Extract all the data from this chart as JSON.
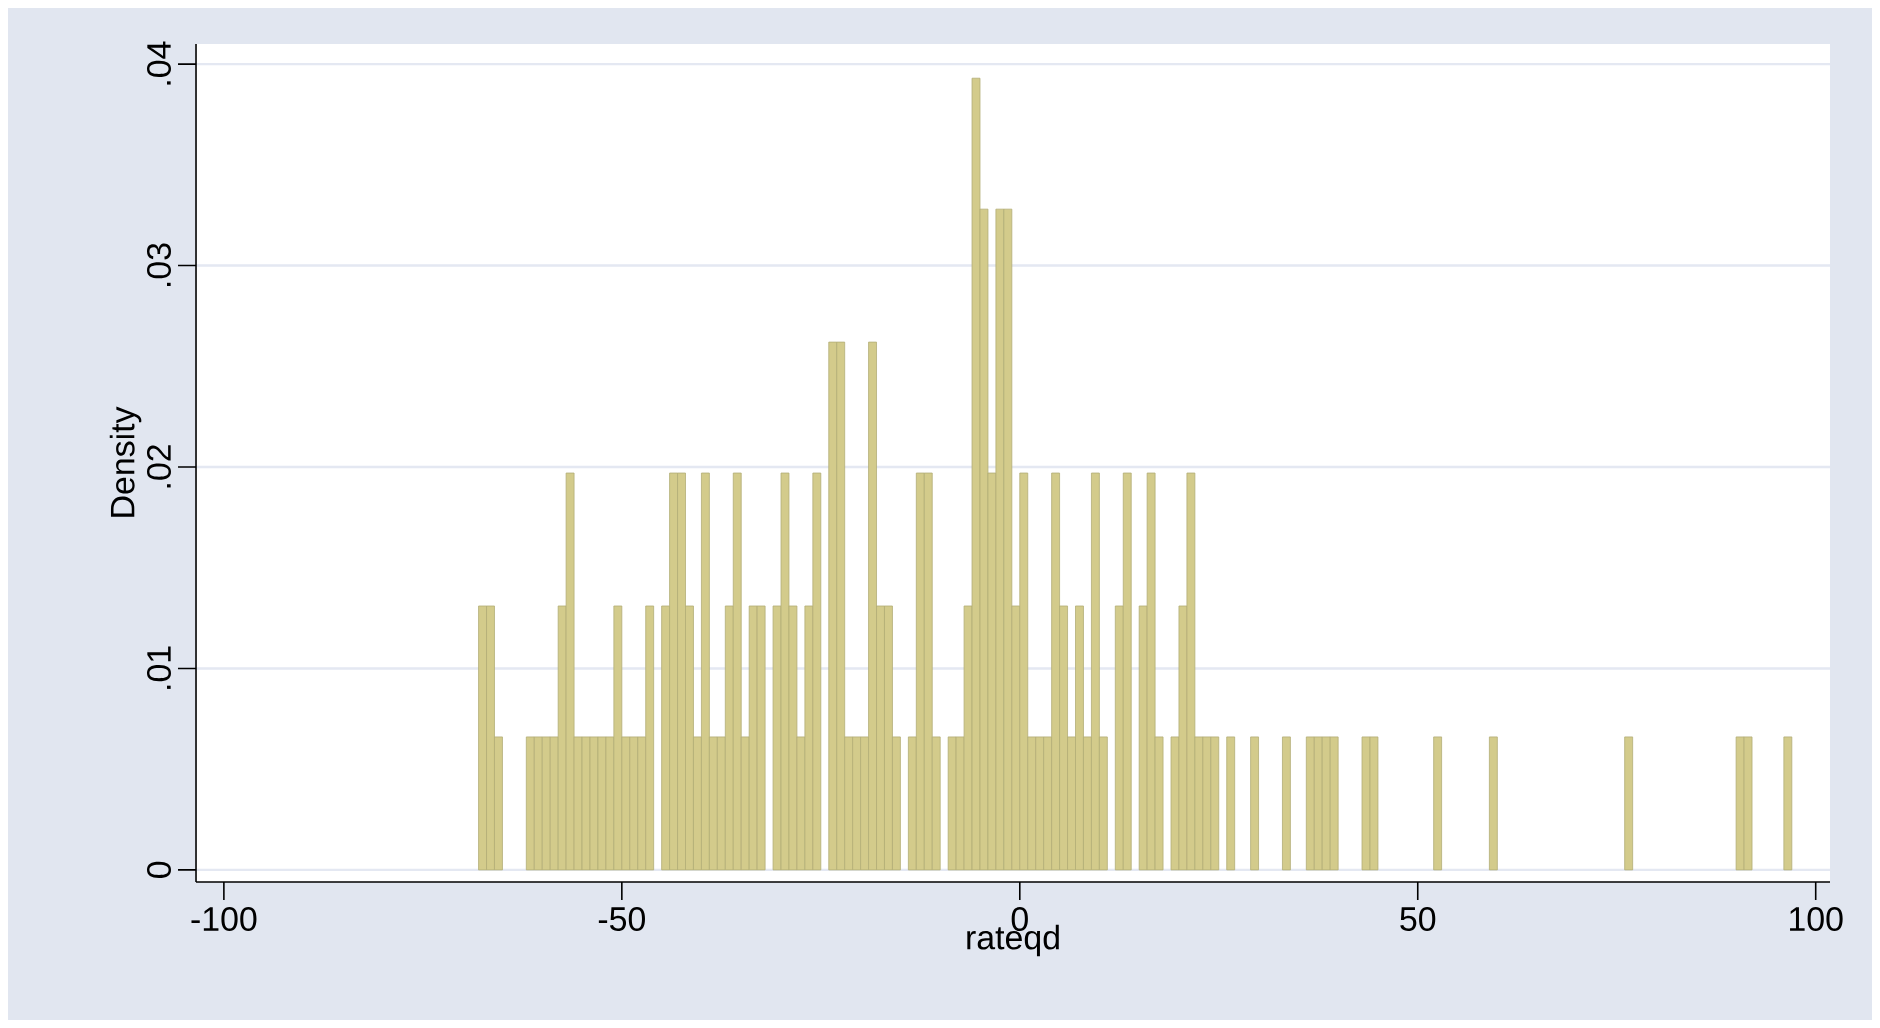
{
  "chart_data": {
    "type": "histogram",
    "xlabel": "rateqd",
    "ylabel": "Density",
    "bins": [
      -68,
      -67,
      -66,
      -65,
      -64,
      -63,
      -62,
      -61,
      -60,
      -59,
      -58,
      -57,
      -56,
      -55,
      -54,
      -53,
      -52,
      -51,
      -50,
      -49,
      -48,
      -47,
      -46,
      -45,
      -44,
      -43,
      -42,
      -41,
      -40,
      -39,
      -38,
      -37,
      -36,
      -35,
      -34,
      -33,
      -32,
      -31,
      -30,
      -29,
      -28,
      -27,
      -26,
      -25,
      -24,
      -23,
      -22,
      -21,
      -20,
      -19,
      -18,
      -17,
      -16,
      -15,
      -14,
      -13,
      -12,
      -11,
      -10,
      -9,
      -8,
      -7,
      -6,
      -5,
      -4,
      -3,
      -2,
      -1,
      0,
      1,
      2,
      3,
      4,
      5,
      6,
      7,
      8,
      9,
      10,
      11,
      12,
      13,
      14,
      15,
      16,
      17,
      18,
      19,
      20,
      21,
      22,
      23,
      24,
      25,
      26,
      27,
      28,
      29,
      30,
      31,
      32,
      33,
      34,
      35,
      36,
      37,
      38,
      39,
      40,
      41,
      42,
      43,
      44,
      45,
      46,
      47,
      48,
      49,
      50,
      51,
      52,
      53,
      54,
      55,
      56,
      57,
      58,
      59,
      60,
      61,
      62,
      63,
      64,
      65,
      66,
      67,
      68,
      69,
      70,
      71,
      72,
      73,
      74,
      75,
      76,
      77,
      78,
      79,
      80,
      81,
      82,
      83,
      84,
      85,
      86,
      87,
      88,
      89,
      90,
      91,
      92,
      93,
      94,
      95,
      96,
      97
    ],
    "values": [
      0.0131,
      0.0131,
      0.0066,
      0,
      0,
      0,
      0.0066,
      0.0066,
      0.0066,
      0.0066,
      0.0131,
      0.0197,
      0.0066,
      0.0066,
      0.0066,
      0.0066,
      0.0066,
      0.0131,
      0.0066,
      0.0066,
      0.0066,
      0.0131,
      0,
      0.0131,
      0.0197,
      0.0197,
      0.0131,
      0.0066,
      0.0197,
      0.0066,
      0.0066,
      0.0131,
      0.0197,
      0.0066,
      0.0131,
      0.0131,
      0,
      0.0131,
      0.0197,
      0.0131,
      0.0066,
      0.0131,
      0.0197,
      0,
      0.0262,
      0.0262,
      0.0066,
      0.0066,
      0.0066,
      0.0262,
      0.0131,
      0.0131,
      0.0066,
      0,
      0.0066,
      0.0197,
      0.0197,
      0.0066,
      0,
      0.0066,
      0.0066,
      0.0131,
      0.0393,
      0.0328,
      0.0197,
      0.0328,
      0.0328,
      0.0131,
      0.0197,
      0.0066,
      0.0066,
      0.0066,
      0.0197,
      0.0131,
      0.0066,
      0.0131,
      0.0066,
      0.0197,
      0.0066,
      0,
      0.0131,
      0.0197,
      0,
      0.0131,
      0.0197,
      0.0066,
      0,
      0.0066,
      0.0131,
      0.0197,
      0.0066,
      0.0066,
      0.0066,
      0,
      0.0066,
      0,
      0,
      0.0066,
      0,
      0,
      0,
      0.0066,
      0,
      0,
      0.0066,
      0.0066,
      0.0066,
      0.0066,
      0,
      0,
      0,
      0.0066,
      0.0066,
      0,
      0,
      0,
      0,
      0,
      0,
      0,
      0.0066,
      0,
      0,
      0,
      0,
      0,
      0,
      0.0066,
      0,
      0,
      0,
      0,
      0,
      0,
      0,
      0,
      0,
      0,
      0,
      0,
      0,
      0,
      0,
      0,
      0.0066,
      0,
      0,
      0,
      0,
      0,
      0,
      0,
      0,
      0,
      0,
      0,
      0,
      0,
      0.0066,
      0.0066,
      0,
      0,
      0,
      0,
      0.0066
    ],
    "color": "#d3cb8b",
    "xlim": [
      -103.5,
      101.8
    ],
    "ylim": [
      -0.0006,
      0.041
    ],
    "xticks": [
      -100,
      -50,
      0,
      50,
      100
    ],
    "yticks": [
      0,
      {
        "value": 0.01,
        "label": ".01"
      },
      {
        "value": 0.02,
        "label": ".02"
      },
      {
        "value": 0.03,
        "label": ".03"
      },
      {
        "value": 0.04,
        "label": ".04"
      }
    ],
    "grid": "y"
  }
}
